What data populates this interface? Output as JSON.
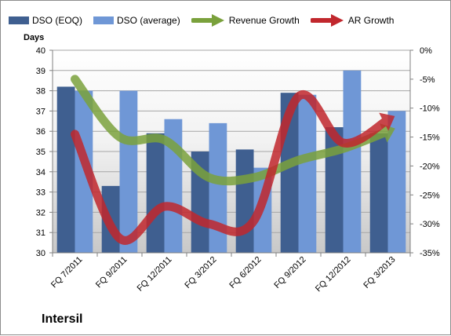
{
  "company_label": "Intersil",
  "legend": [
    {
      "label": "DSO (EOQ)",
      "kind": "bar",
      "color": "#3f5f90"
    },
    {
      "label": "DSO (average)",
      "kind": "bar",
      "color": "#6f97d6"
    },
    {
      "label": "Revenue Growth",
      "kind": "arrow",
      "color": "#7aa13c"
    },
    {
      "label": "AR Growth",
      "kind": "arrow",
      "color": "#c1272d"
    }
  ],
  "colors": {
    "dso_eoq": "#3f5f90",
    "dso_avg": "#6f97d6",
    "revenue_growth": "#7aa13c",
    "ar_growth": "#c1272d",
    "grid": "#a6a6a6",
    "plot_background_top": "#ffffff",
    "plot_background_bottom": "#c8c8c8"
  },
  "chart_data": {
    "type": "bar",
    "categories": [
      "FQ 7/2011",
      "FQ 9/2011",
      "FQ 12/2011",
      "FQ 3/2012",
      "FQ 6/2012",
      "FQ 9/2012",
      "FQ 12/2012",
      "FQ 3/2013"
    ],
    "series": [
      {
        "name": "DSO (EOQ)",
        "type": "bar",
        "axis": "left",
        "values": [
          38.2,
          33.3,
          35.9,
          35.0,
          35.1,
          37.9,
          36.2,
          35.9
        ]
      },
      {
        "name": "DSO (average)",
        "type": "bar",
        "axis": "left",
        "values": [
          38.0,
          38.0,
          36.6,
          36.4,
          34.2,
          37.8,
          39.0,
          37.0
        ]
      },
      {
        "name": "Revenue Growth",
        "type": "line",
        "axis": "right",
        "values": [
          -5.0,
          -15.0,
          -15.5,
          -22.0,
          -22.0,
          -19.0,
          -17.0,
          -14.0
        ]
      },
      {
        "name": "AR Growth",
        "type": "line",
        "axis": "right",
        "values": [
          -14.5,
          -32.5,
          -27.0,
          -30.0,
          -29.5,
          -8.0,
          -16.0,
          -12.0
        ]
      }
    ],
    "ylabel": "Days",
    "ylim": [
      30,
      40
    ],
    "yticks": [
      30,
      31,
      32,
      33,
      34,
      35,
      36,
      37,
      38,
      39,
      40
    ],
    "y2lim": [
      -35,
      0
    ],
    "y2ticks": [
      "-35%",
      "-30%",
      "-25%",
      "-20%",
      "-15%",
      "-10%",
      "-5%",
      "0%"
    ],
    "grid": true,
    "legend_position": "top"
  }
}
